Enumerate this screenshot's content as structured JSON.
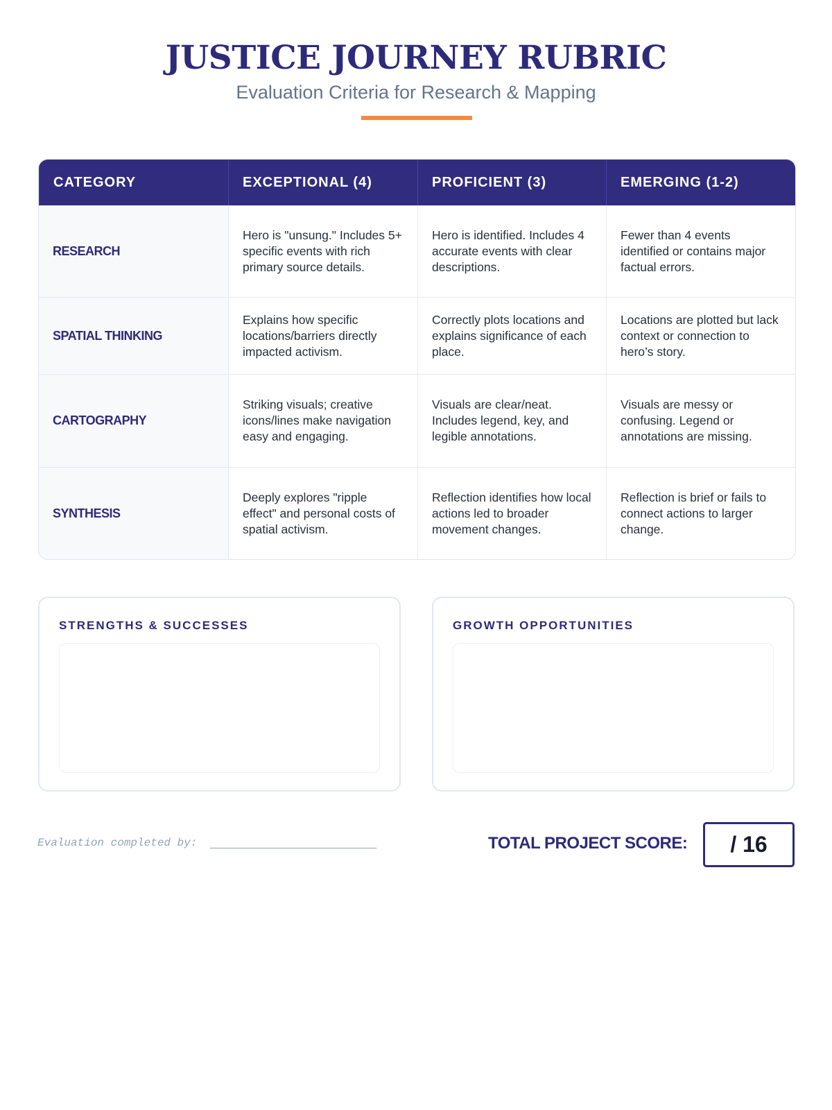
{
  "header": {
    "title": "JUSTICE JOURNEY RUBRIC",
    "subtitle": "Evaluation Criteria for Research & Mapping",
    "accent_color": "#f7893b"
  },
  "table": {
    "columns": [
      "CATEGORY",
      "EXCEPTIONAL (4)",
      "PROFICIENT (3)",
      "EMERGING (1-2)"
    ],
    "rows": [
      {
        "category": "RESEARCH",
        "exceptional": "Hero is \"unsung.\" Includes 5+ specific events with rich primary source details.",
        "proficient": "Hero is identified. Includes 4 accurate events with clear descriptions.",
        "emerging": "Fewer than 4 events identified or contains major factual errors."
      },
      {
        "category": "SPATIAL THINKING",
        "exceptional": "Explains how specific locations/barriers directly impacted activism.",
        "proficient": "Correctly plots locations and explains significance of each place.",
        "emerging": "Locations are plotted but lack context or connection to hero’s story."
      },
      {
        "category": "CARTOGRAPHY",
        "exceptional": "Striking visuals; creative icons/lines make navigation easy and engaging.",
        "proficient": "Visuals are clear/neat. Includes legend, key, and legible annotations.",
        "emerging": "Visuals are messy or confusing. Legend or annotations are missing."
      },
      {
        "category": "SYNTHESIS",
        "exceptional": "Deeply explores \"ripple effect\" and personal costs of spatial activism.",
        "proficient": "Reflection identifies how local actions led to broader movement changes.",
        "emerging": "Reflection is brief or fails to connect actions to larger change."
      }
    ]
  },
  "feedback": {
    "strengths_label": "STRENGTHS & SUCCESSES",
    "growth_label": "GROWTH OPPORTUNITIES"
  },
  "footer": {
    "evaluator_label": "Evaluation completed by:",
    "score_label": "TOTAL PROJECT SCORE:",
    "score_value": "/ 16"
  },
  "colors": {
    "primary": "#312c7e",
    "accent": "#f7893b"
  }
}
